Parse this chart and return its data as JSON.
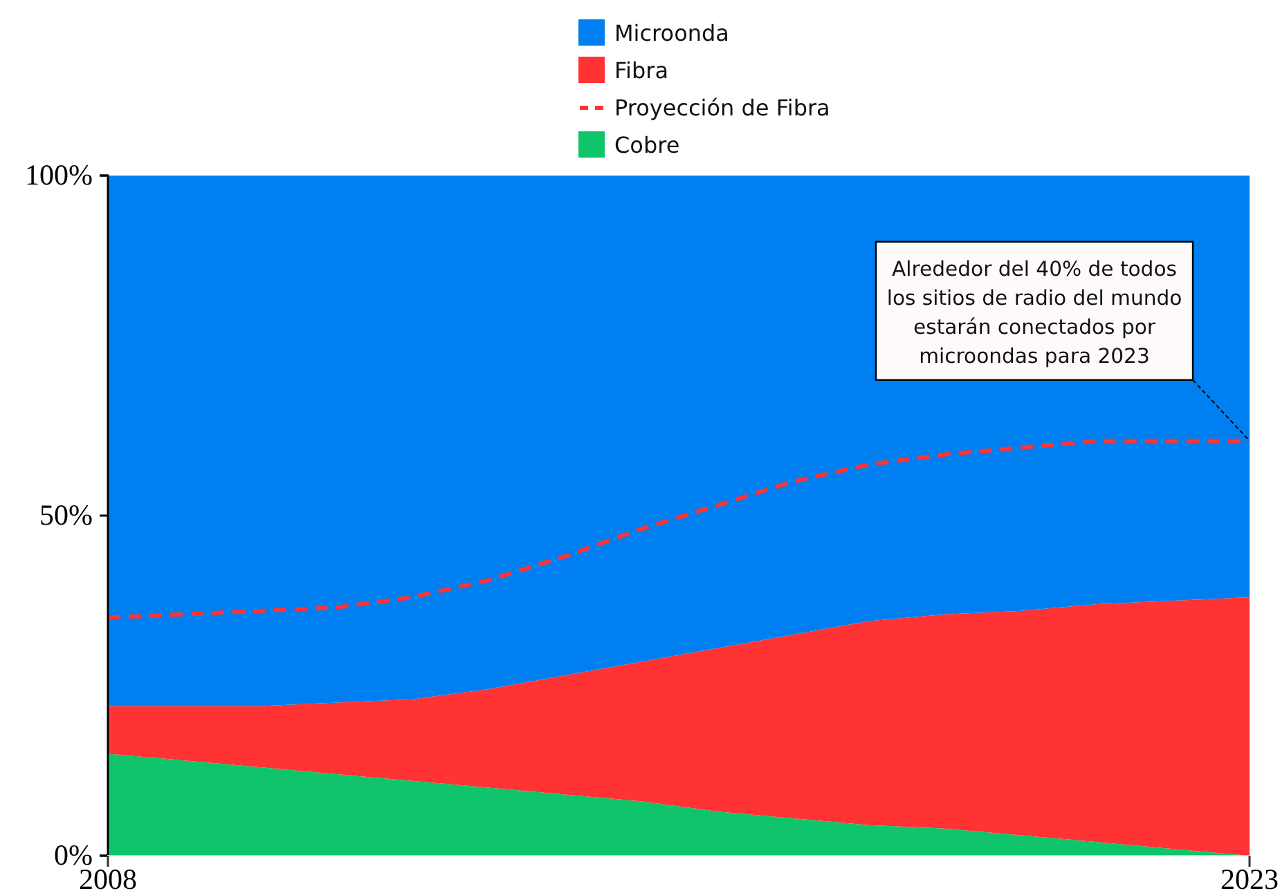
{
  "chart_data": {
    "type": "area",
    "stacked": true,
    "legend": "top",
    "x": [
      2008,
      2009,
      2010,
      2011,
      2012,
      2013,
      2014,
      2015,
      2016,
      2017,
      2018,
      2019,
      2020,
      2021,
      2022,
      2023
    ],
    "xlim": [
      2008,
      2023
    ],
    "xticks": [
      2008,
      2023
    ],
    "ylim": [
      0,
      100
    ],
    "yticks": [
      {
        "value": 0,
        "label": "0%"
      },
      {
        "value": 50,
        "label": "50%"
      },
      {
        "value": 100,
        "label": "100%"
      }
    ],
    "series": [
      {
        "name": "Cobre",
        "color": "#10c46c",
        "values": [
          15,
          14,
          13,
          12,
          11,
          10,
          9,
          8,
          6.5,
          5.5,
          4.5,
          4,
          3,
          2,
          1,
          0
        ]
      },
      {
        "name": "Proyección de Fibra",
        "type": "line",
        "line_style": "dashed",
        "color": "#ff3333",
        "values": [
          35,
          35.5,
          36,
          36.5,
          38,
          40.5,
          44,
          48,
          51.5,
          55,
          57.5,
          59,
          60,
          61,
          61,
          61
        ]
      },
      {
        "name": "Fibra",
        "color": "#ff3333",
        "values": [
          7,
          8,
          9,
          10.5,
          12,
          14.5,
          17.5,
          20.5,
          24,
          27,
          30,
          31.5,
          33,
          35,
          36.5,
          38
        ]
      },
      {
        "name": "Microonda",
        "color": "#0080f0",
        "values": [
          78,
          78,
          78,
          77.5,
          77,
          75.5,
          73.5,
          71.5,
          69.5,
          67.5,
          65.5,
          64.5,
          64,
          63,
          62.5,
          62
        ]
      }
    ],
    "annotations": [
      {
        "text": "Alrededor del 40% de todos\nlos sitios de radio del mundo\nestarán conectados por\nmicroondas para 2023",
        "x": 2023,
        "y": 61
      }
    ]
  }
}
